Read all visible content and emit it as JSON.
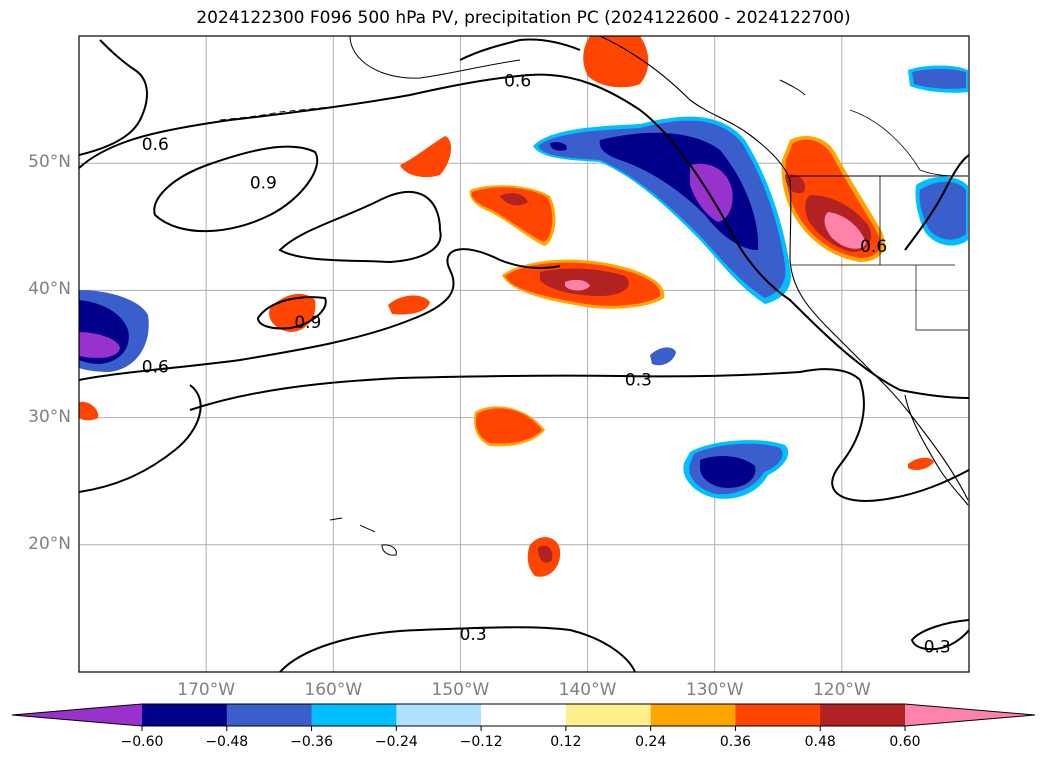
{
  "title": "2024122300 F096 500 hPa PV, precipitation PC (2024122600 - 2024122700)",
  "map": {
    "lon_range": [
      -180,
      -110
    ],
    "lat_range": [
      10,
      60
    ],
    "lat_ticks": [
      {
        "value": 20,
        "label": "20°N"
      },
      {
        "value": 30,
        "label": "30°N"
      },
      {
        "value": 40,
        "label": "40°N"
      },
      {
        "value": 50,
        "label": "50°N"
      }
    ],
    "lon_ticks": [
      {
        "value": -170,
        "label": "170°W"
      },
      {
        "value": -160,
        "label": "160°W"
      },
      {
        "value": -150,
        "label": "150°W"
      },
      {
        "value": -140,
        "label": "140°W"
      },
      {
        "value": -130,
        "label": "130°W"
      },
      {
        "value": -120,
        "label": "120°W"
      }
    ],
    "grid": true,
    "contour_labels": [
      {
        "text": "0.6",
        "lon": -174,
        "lat": 51.5
      },
      {
        "text": "0.9",
        "lon": -165.5,
        "lat": 48.5
      },
      {
        "text": "0.6",
        "lon": -145.5,
        "lat": 56.5
      },
      {
        "text": "0.9",
        "lon": -162,
        "lat": 37.5
      },
      {
        "text": "0.6",
        "lon": -174,
        "lat": 34
      },
      {
        "text": "0.3",
        "lon": -136,
        "lat": 33
      },
      {
        "text": "0.6",
        "lon": -117.5,
        "lat": 43.5
      },
      {
        "text": "0.3",
        "lon": -149,
        "lat": 13
      },
      {
        "text": "0.3",
        "lon": -112.5,
        "lat": 12
      }
    ]
  },
  "colorbar": {
    "ticks": [
      "−0.60",
      "−0.48",
      "−0.36",
      "−0.24",
      "−0.12",
      "0.12",
      "0.24",
      "0.36",
      "0.48",
      "0.60"
    ],
    "colors": [
      "#9932cc",
      "#00008b",
      "#3a5fcd",
      "#00bfff",
      "#b0e2ff",
      "#ffffff",
      "#fff08c",
      "#ffa500",
      "#ff4500",
      "#b22222",
      "#ff82ab"
    ],
    "extend": "both"
  }
}
